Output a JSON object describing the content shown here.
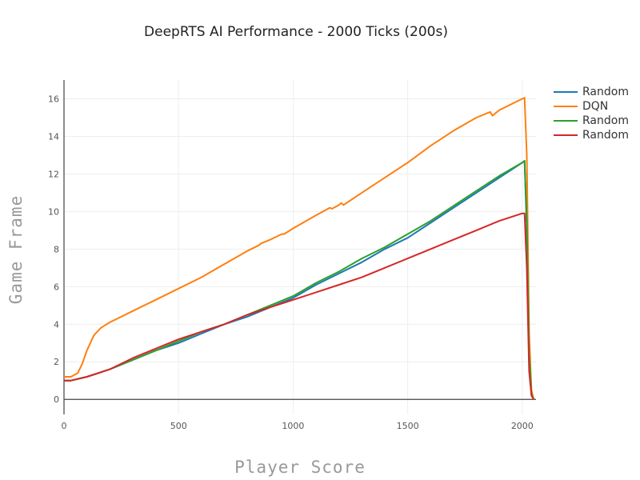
{
  "chart_data": {
    "type": "line",
    "title": "DeepRTS AI Performance - 2000 Ticks (200s)",
    "xlabel": "Player Score",
    "ylabel": "Game Frame",
    "xlim": [
      0,
      2060
    ],
    "ylim": [
      -0.8,
      17
    ],
    "xticks": [
      0,
      500,
      1000,
      1500,
      2000
    ],
    "yticks": [
      0,
      2,
      4,
      6,
      8,
      10,
      12,
      14,
      16
    ],
    "grid": true,
    "legend_position": "top-right",
    "series": [
      {
        "name": "Random",
        "color": "#1f77b4",
        "x": [
          0,
          30,
          100,
          200,
          300,
          400,
          500,
          600,
          700,
          800,
          900,
          1000,
          1100,
          1200,
          1300,
          1400,
          1500,
          1600,
          1700,
          1800,
          1900,
          2000,
          2010,
          2020,
          2030,
          2040,
          2050
        ],
        "y": [
          1.0,
          1.0,
          1.2,
          1.6,
          2.1,
          2.6,
          3.0,
          3.5,
          4.0,
          4.4,
          4.9,
          5.4,
          6.1,
          6.7,
          7.3,
          8.0,
          8.6,
          9.4,
          10.2,
          11.0,
          11.8,
          12.6,
          12.7,
          9.0,
          2.0,
          0.3,
          0.0
        ]
      },
      {
        "name": "DQN",
        "color": "#ff7f0e",
        "x": [
          0,
          30,
          60,
          80,
          100,
          130,
          160,
          200,
          300,
          400,
          500,
          600,
          700,
          800,
          850,
          860,
          900,
          950,
          960,
          1000,
          1100,
          1160,
          1170,
          1200,
          1210,
          1220,
          1300,
          1400,
          1500,
          1600,
          1700,
          1800,
          1860,
          1870,
          1880,
          1900,
          2000,
          2010,
          2020,
          2030,
          2040,
          2050
        ],
        "y": [
          1.2,
          1.2,
          1.4,
          1.9,
          2.6,
          3.4,
          3.8,
          4.1,
          4.7,
          5.3,
          5.9,
          6.5,
          7.2,
          7.9,
          8.2,
          8.3,
          8.5,
          8.8,
          8.8,
          9.1,
          9.8,
          10.2,
          10.15,
          10.35,
          10.45,
          10.35,
          11.0,
          11.8,
          12.6,
          13.5,
          14.3,
          15.0,
          15.3,
          15.1,
          15.2,
          15.4,
          16.0,
          16.05,
          13.0,
          3.5,
          0.5,
          0.0
        ]
      },
      {
        "name": "Random",
        "color": "#2ca02c",
        "x": [
          0,
          30,
          100,
          200,
          300,
          400,
          500,
          600,
          700,
          800,
          900,
          1000,
          1100,
          1200,
          1300,
          1400,
          1500,
          1600,
          1700,
          1800,
          1900,
          2000,
          2010,
          2020,
          2030,
          2040,
          2050
        ],
        "y": [
          1.0,
          1.0,
          1.2,
          1.6,
          2.1,
          2.6,
          3.1,
          3.6,
          4.0,
          4.5,
          5.0,
          5.5,
          6.2,
          6.8,
          7.5,
          8.1,
          8.8,
          9.5,
          10.3,
          11.1,
          11.9,
          12.6,
          12.7,
          9.5,
          2.5,
          0.3,
          0.0
        ]
      },
      {
        "name": "Random",
        "color": "#d62728",
        "x": [
          0,
          30,
          100,
          200,
          300,
          400,
          500,
          600,
          700,
          800,
          900,
          1000,
          1100,
          1200,
          1300,
          1400,
          1500,
          1600,
          1700,
          1800,
          1900,
          2000,
          2010,
          2020,
          2030,
          2040,
          2050
        ],
        "y": [
          1.0,
          1.0,
          1.2,
          1.6,
          2.2,
          2.7,
          3.2,
          3.6,
          4.0,
          4.5,
          4.9,
          5.3,
          5.7,
          6.1,
          6.5,
          7.0,
          7.5,
          8.0,
          8.5,
          9.0,
          9.5,
          9.9,
          9.9,
          7.0,
          1.5,
          0.2,
          0.0
        ]
      }
    ]
  }
}
